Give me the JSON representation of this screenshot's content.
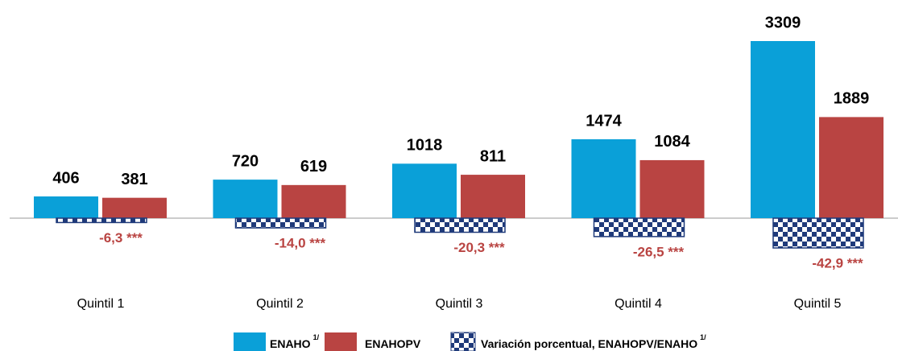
{
  "chart_data": {
    "type": "bar",
    "categories": [
      "Quintil 1",
      "Quintil 2",
      "Quintil 3",
      "Quintil 4",
      "Quintil 5"
    ],
    "series": [
      {
        "name": "ENAHO",
        "note": "1/",
        "color": "#0aa0d8",
        "values": [
          406,
          720,
          1018,
          1474,
          3309
        ]
      },
      {
        "name": "ENAHOPV",
        "color": "#b94442",
        "values": [
          381,
          619,
          811,
          1084,
          1889
        ]
      },
      {
        "name": "Variación porcentual, ENAHOPV/ENAHO",
        "note": "1/",
        "color": "#1f3a7a",
        "pattern": "checkered",
        "values": [
          -6.3,
          -14.0,
          -20.3,
          -26.5,
          -42.9
        ],
        "value_labels": [
          "-6,3 ***",
          "-14,0 ***",
          "-20,3 ***",
          "-26,5 ***",
          "-42,9 ***"
        ]
      }
    ]
  }
}
